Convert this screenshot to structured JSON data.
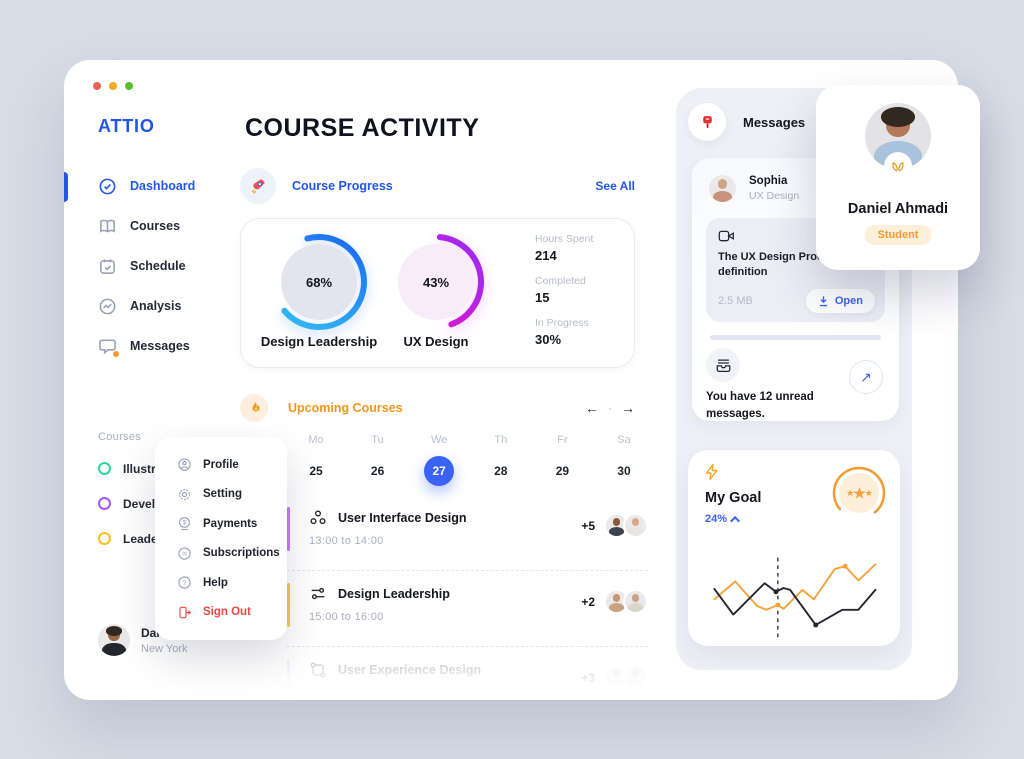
{
  "window": {
    "traffic_lights": [
      "#ee5f52",
      "#f5a623",
      "#53c22b"
    ]
  },
  "colors": {
    "brand_blue": "#2156e8",
    "accent_blue": "#3b63f3",
    "orange": "#f5951d",
    "danger_red": "#ee4444",
    "background": "#d7dce6"
  },
  "sidebar": {
    "logo": "ATTIO",
    "nav": [
      {
        "label": "Dashboard",
        "icon": "dashboard-icon",
        "active": true
      },
      {
        "label": "Courses",
        "icon": "book-icon"
      },
      {
        "label": "Schedule",
        "icon": "schedule-icon"
      },
      {
        "label": "Analysis",
        "icon": "analysis-icon"
      },
      {
        "label": "Messages",
        "icon": "chat-icon",
        "notification": true
      }
    ],
    "courses_label": "Courses",
    "course_legend": [
      {
        "label": "Illustration",
        "color": "#2fd79f"
      },
      {
        "label": "Development",
        "color": "#a855f7"
      },
      {
        "label": "Leadership",
        "color": "#fbbf24"
      }
    ],
    "user": {
      "name": "Daniel",
      "location": "New York"
    }
  },
  "header": {
    "title": "COURSE ACTIVITY"
  },
  "course_progress": {
    "label": "Course Progress",
    "see_all": "See All",
    "rings": [
      {
        "percent": "68%",
        "value": 68,
        "label": "Design Leadership",
        "arc_from": "#35c0f6",
        "arc_to": "#1b66f0",
        "inner": "#e3e4ee"
      },
      {
        "percent": "43%",
        "value": 43,
        "label": "UX Design",
        "arc_from": "#ef10c1",
        "arc_to": "#9a2cf3",
        "inner": "#f8ecf8"
      }
    ],
    "stats": [
      {
        "label": "Hours Spent",
        "value": "214"
      },
      {
        "label": "Completed",
        "value": "15"
      },
      {
        "label": "In Progress",
        "value": "30%"
      }
    ]
  },
  "upcoming": {
    "label": "Upcoming Courses",
    "nav": {
      "prev": "←",
      "dot": "·",
      "next": "→"
    },
    "calendar": {
      "days": [
        "Mo",
        "Tu",
        "We",
        "Th",
        "Fr",
        "Sa"
      ],
      "dates": [
        "25",
        "26",
        "27",
        "28",
        "29",
        "30"
      ],
      "selected_index": 2
    },
    "rows": [
      {
        "title": "User Interface Design",
        "time": "13:00  to  14:00",
        "extra": "+5",
        "accent": "#c77df2"
      },
      {
        "title": "Design Leadership",
        "time": "15:00  to  16:00",
        "extra": "+2",
        "accent": "#f7c85c"
      },
      {
        "title": "User Experience Design",
        "time": "",
        "extra": "+3",
        "accent": "#bcd4f6"
      }
    ]
  },
  "menu": {
    "items": [
      {
        "label": "Profile"
      },
      {
        "label": "Setting"
      },
      {
        "label": "Payments"
      },
      {
        "label": "Subscriptions"
      },
      {
        "label": "Help"
      },
      {
        "label": "Sign Out",
        "danger": true
      }
    ]
  },
  "messages_panel": {
    "title": "Messages",
    "message": {
      "sender": "Sophia",
      "role": "UX Design",
      "attachment": {
        "title": "The UX Design Process definition",
        "size": "2.5 MB",
        "open_label": "Open"
      }
    },
    "unread_text": "You have 12 unread messages.",
    "go_arrow": "↗"
  },
  "goal": {
    "title": "My Goal",
    "percent": "24%",
    "chart_data": {
      "type": "line",
      "title": "My Goal progress",
      "legend_position": "none",
      "axes_visible": false,
      "divider_x": 79,
      "series": [
        {
          "name": "goal",
          "color": "#f6a33c",
          "points": [
            [
              12,
              50
            ],
            [
              34,
              31
            ],
            [
              57,
              57
            ],
            [
              67,
              61
            ],
            [
              79,
              56
            ],
            [
              85,
              60
            ],
            [
              105,
              40
            ],
            [
              117,
              50
            ],
            [
              139,
              18
            ],
            [
              150,
              15
            ],
            [
              164,
              30
            ],
            [
              182,
              13
            ]
          ],
          "markers": [
            [
              79,
              56
            ],
            [
              150,
              15
            ]
          ]
        },
        {
          "name": "actual",
          "color": "#23262e",
          "points": [
            [
              12,
              39
            ],
            [
              32,
              66
            ],
            [
              65,
              33
            ],
            [
              77,
              42
            ],
            [
              85,
              38
            ],
            [
              92,
              40
            ],
            [
              119,
              77
            ],
            [
              147,
              61
            ],
            [
              164,
              61
            ],
            [
              182,
              40
            ]
          ],
          "markers": [
            [
              77,
              42
            ],
            [
              119,
              77
            ]
          ]
        }
      ]
    }
  },
  "profile_card": {
    "name": "Daniel Ahmadi",
    "badge": "Student"
  }
}
